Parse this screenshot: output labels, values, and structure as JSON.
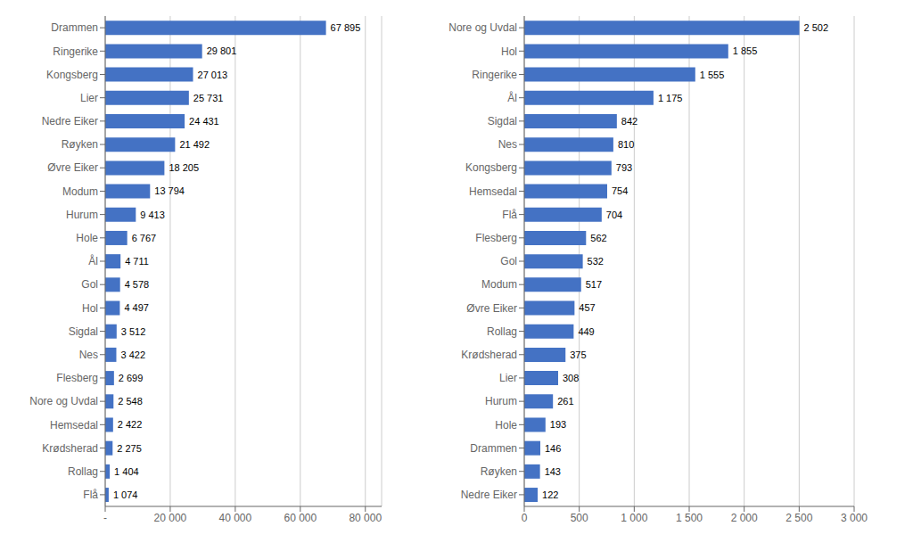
{
  "chart_data": [
    {
      "type": "bar",
      "orientation": "horizontal",
      "categories": [
        "Drammen",
        "Ringerike",
        "Kongsberg",
        "Lier",
        "Nedre Eiker",
        "Røyken",
        "Øvre Eiker",
        "Modum",
        "Hurum",
        "Hole",
        "Ål",
        "Gol",
        "Hol",
        "Sigdal",
        "Nes",
        "Flesberg",
        "Nore og Uvdal",
        "Hemsedal",
        "Krødsherad",
        "Rollag",
        "Flå"
      ],
      "values": [
        67895,
        29801,
        27013,
        25731,
        24431,
        21492,
        18205,
        13794,
        9413,
        6767,
        4711,
        4578,
        4497,
        3512,
        3422,
        2699,
        2548,
        2422,
        2275,
        1404,
        1074
      ],
      "value_labels": [
        "67 895",
        "29 801",
        "27 013",
        "25 731",
        "24 431",
        "21 492",
        "18 205",
        "13 794",
        "9 413",
        "6 767",
        "4 711",
        "4 578",
        "4 497",
        "3 512",
        "3 422",
        "2 699",
        "2 548",
        "2 422",
        "2 275",
        "1 404",
        "1 074"
      ],
      "data_labels": true,
      "color": "#4472C4",
      "xlim": [
        0,
        85000
      ],
      "xticks": [
        {
          "value": 0,
          "label": "-"
        },
        {
          "value": 20000,
          "label": "20 000"
        },
        {
          "value": 40000,
          "label": "40 000"
        },
        {
          "value": 60000,
          "label": "60 000"
        },
        {
          "value": 80000,
          "label": "80 000"
        }
      ],
      "grid": true
    },
    {
      "type": "bar",
      "orientation": "horizontal",
      "categories": [
        "Nore og Uvdal",
        "Hol",
        "Ringerike",
        "Ål",
        "Sigdal",
        "Nes",
        "Kongsberg",
        "Hemsedal",
        "Flå",
        "Flesberg",
        "Gol",
        "Modum",
        "Øvre Eiker",
        "Rollag",
        "Krødsherad",
        "Lier",
        "Hurum",
        "Hole",
        "Drammen",
        "Røyken",
        "Nedre Eiker"
      ],
      "values": [
        2502,
        1855,
        1555,
        1175,
        842,
        810,
        793,
        754,
        704,
        562,
        532,
        517,
        457,
        449,
        375,
        308,
        261,
        193,
        146,
        143,
        122
      ],
      "value_labels": [
        "2 502",
        "1 855",
        "1 555",
        "1 175",
        "842",
        "810",
        "793",
        "754",
        "704",
        "562",
        "532",
        "517",
        "457",
        "449",
        "375",
        "308",
        "261",
        "193",
        "146",
        "143",
        "122"
      ],
      "data_labels": true,
      "color": "#4472C4",
      "xlim": [
        0,
        3000
      ],
      "xticks": [
        0,
        500,
        {
          "value": 1000,
          "label": "1 000"
        },
        {
          "value": 1500,
          "label": "1 500"
        },
        {
          "value": 2000,
          "label": "2 000"
        },
        {
          "value": 2500,
          "label": "2 500"
        },
        {
          "value": 3000,
          "label": "3 000"
        }
      ],
      "grid": true
    }
  ]
}
